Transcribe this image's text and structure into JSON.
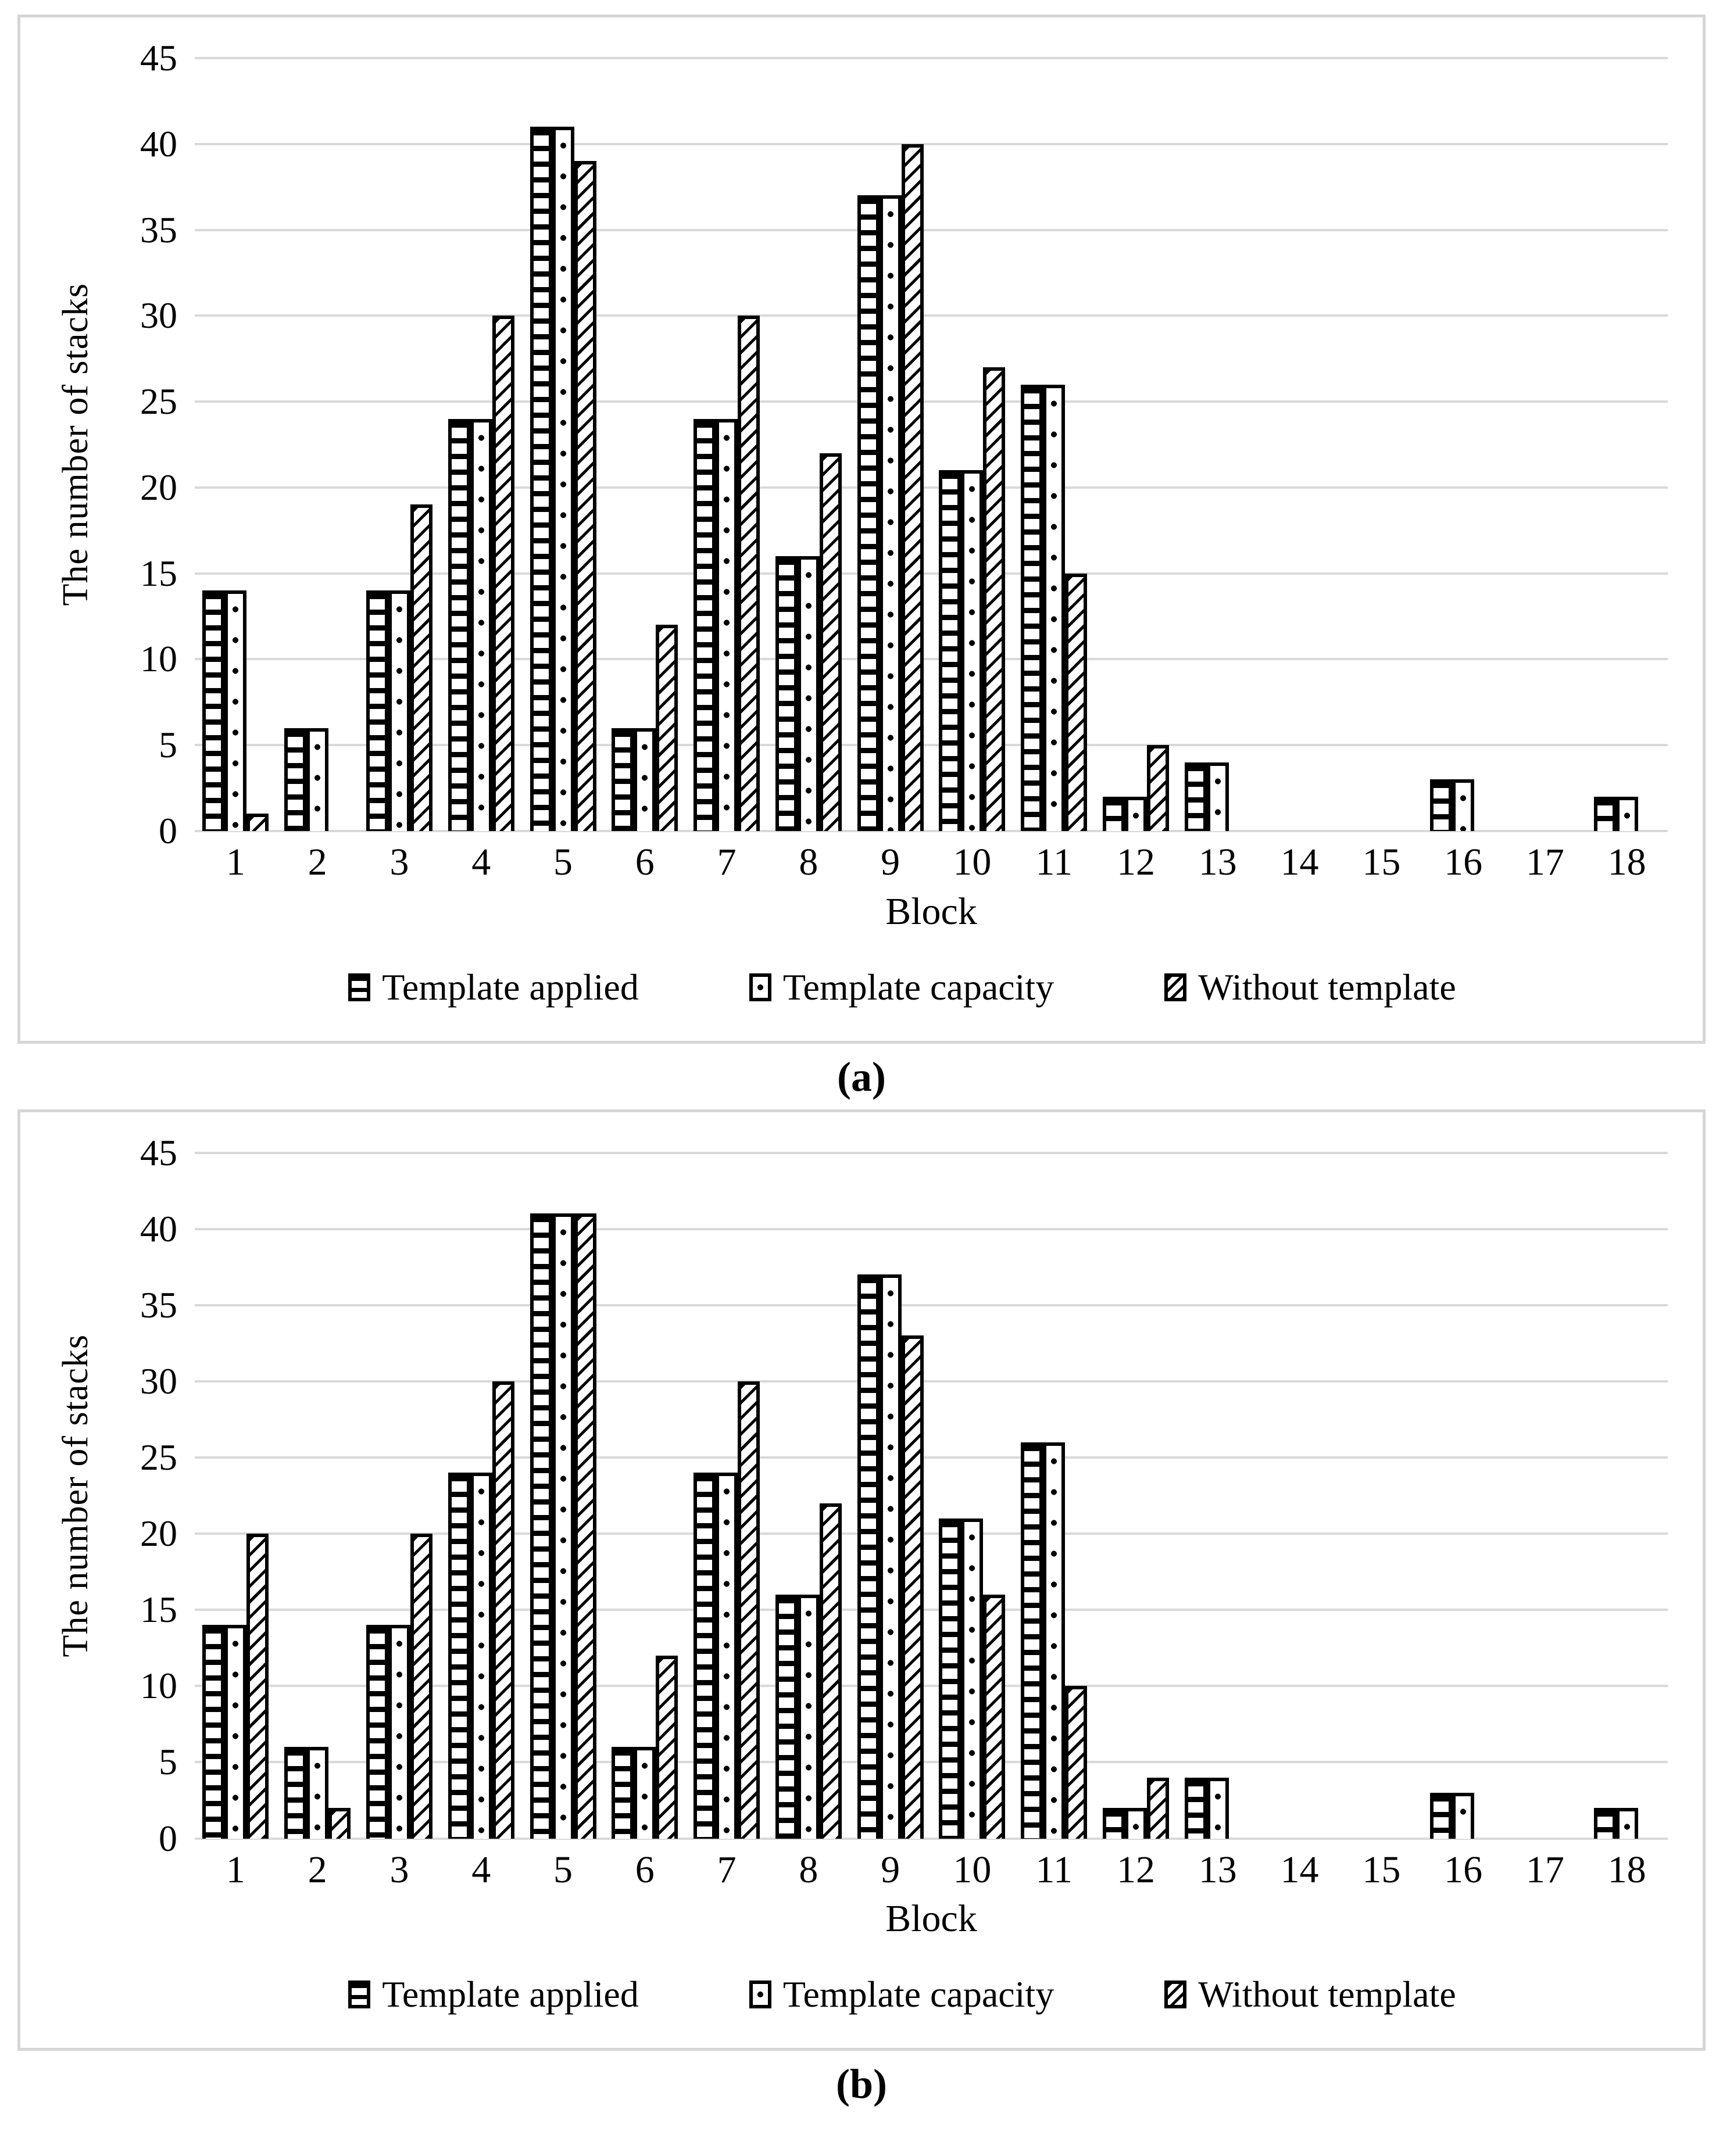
{
  "colors": {
    "background": "#ffffff",
    "gridline": "#d9d9d9",
    "panel_border": "#d6d6d6",
    "bar_outline": "#000000"
  },
  "chart_data": [
    {
      "type": "bar",
      "caption": "(a)",
      "xlabel": "Block",
      "ylabel": "The number of stacks",
      "ylim": [
        0,
        45
      ],
      "yticks": [
        0,
        5,
        10,
        15,
        20,
        25,
        30,
        35,
        40,
        45
      ],
      "grid": true,
      "legend_position": "bottom",
      "categories": [
        "1",
        "2",
        "3",
        "4",
        "5",
        "6",
        "7",
        "8",
        "9",
        "10",
        "11",
        "12",
        "13",
        "14",
        "15",
        "16",
        "17",
        "18"
      ],
      "series": [
        {
          "name": "Template applied",
          "pattern": "applied",
          "values": [
            14,
            6,
            14,
            24,
            41,
            6,
            24,
            16,
            37,
            21,
            26,
            2,
            4,
            0,
            0,
            3,
            0,
            2
          ]
        },
        {
          "name": "Template capacity",
          "pattern": "capacity",
          "values": [
            14,
            6,
            14,
            24,
            41,
            6,
            24,
            16,
            37,
            21,
            26,
            2,
            4,
            0,
            0,
            3,
            0,
            2
          ]
        },
        {
          "name": "Without template",
          "pattern": "without",
          "values": [
            1,
            0,
            19,
            30,
            39,
            12,
            30,
            22,
            40,
            27,
            15,
            5,
            0,
            0,
            0,
            0,
            0,
            0
          ]
        }
      ]
    },
    {
      "type": "bar",
      "caption": "(b)",
      "xlabel": "Block",
      "ylabel": "The number of stacks",
      "ylim": [
        0,
        45
      ],
      "yticks": [
        0,
        5,
        10,
        15,
        20,
        25,
        30,
        35,
        40,
        45
      ],
      "grid": true,
      "legend_position": "bottom",
      "categories": [
        "1",
        "2",
        "3",
        "4",
        "5",
        "6",
        "7",
        "8",
        "9",
        "10",
        "11",
        "12",
        "13",
        "14",
        "15",
        "16",
        "17",
        "18"
      ],
      "series": [
        {
          "name": "Template applied",
          "pattern": "applied",
          "values": [
            14,
            6,
            14,
            24,
            41,
            6,
            24,
            16,
            37,
            21,
            26,
            2,
            4,
            0,
            0,
            3,
            0,
            2
          ]
        },
        {
          "name": "Template capacity",
          "pattern": "capacity",
          "values": [
            14,
            6,
            14,
            24,
            41,
            6,
            24,
            16,
            37,
            21,
            26,
            2,
            4,
            0,
            0,
            3,
            0,
            2
          ]
        },
        {
          "name": "Without template",
          "pattern": "without",
          "values": [
            20,
            2,
            20,
            30,
            41,
            12,
            30,
            22,
            33,
            16,
            10,
            4,
            0,
            0,
            0,
            0,
            0,
            0
          ]
        }
      ]
    }
  ]
}
